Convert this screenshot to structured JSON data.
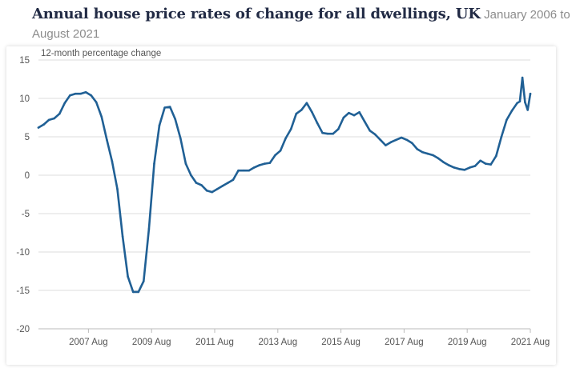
{
  "header": {
    "title": "Annual house price rates of change for all dwellings, UK",
    "subtitle": "January 2006 to August 2021"
  },
  "colors": {
    "line": "#206095",
    "grid": "#dddddd",
    "text": "#555555",
    "title": "#222b45"
  },
  "chart_data": {
    "type": "line",
    "title": "Annual house price rates of change for all dwellings, UK",
    "subtitle": "January 2006 to August 2021",
    "ylabel": "12-month percentage change",
    "xlabel": "",
    "ylim": [
      -20,
      15
    ],
    "xlim": [
      "2006-01",
      "2021-08"
    ],
    "yticks": [
      15,
      10,
      5,
      0,
      -5,
      -10,
      -15,
      -20
    ],
    "xticks": [
      "2007 Aug",
      "2009 Aug",
      "2011 Aug",
      "2013 Aug",
      "2015 Aug",
      "2017 Aug",
      "2019 Aug",
      "2021 Aug"
    ],
    "grid": true,
    "legend": "none",
    "series": [
      {
        "x": [
          "2006-01",
          "2006-03",
          "2006-05",
          "2006-07",
          "2006-09",
          "2006-11",
          "2007-01",
          "2007-03",
          "2007-05",
          "2007-07",
          "2007-09",
          "2007-11",
          "2008-01",
          "2008-03",
          "2008-05",
          "2008-07",
          "2008-09",
          "2008-11",
          "2009-01",
          "2009-03",
          "2009-05",
          "2009-07",
          "2009-09",
          "2009-11",
          "2010-01",
          "2010-03",
          "2010-05",
          "2010-07",
          "2010-09",
          "2010-11",
          "2011-01",
          "2011-03",
          "2011-05",
          "2011-07",
          "2011-09",
          "2011-11",
          "2012-01",
          "2012-03",
          "2012-05",
          "2012-07",
          "2012-09",
          "2012-11",
          "2013-01",
          "2013-03",
          "2013-05",
          "2013-07",
          "2013-09",
          "2013-11",
          "2014-01",
          "2014-03",
          "2014-05",
          "2014-07",
          "2014-09",
          "2014-11",
          "2015-01",
          "2015-03",
          "2015-05",
          "2015-07",
          "2015-09",
          "2015-11",
          "2016-01",
          "2016-03",
          "2016-05",
          "2016-07",
          "2016-09",
          "2016-11",
          "2017-01",
          "2017-03",
          "2017-05",
          "2017-07",
          "2017-09",
          "2017-11",
          "2018-01",
          "2018-03",
          "2018-05",
          "2018-07",
          "2018-09",
          "2018-11",
          "2019-01",
          "2019-03",
          "2019-05",
          "2019-07",
          "2019-09",
          "2019-11",
          "2020-01",
          "2020-03",
          "2020-05",
          "2020-07",
          "2020-09",
          "2020-11",
          "2021-01",
          "2021-03",
          "2021-04",
          "2021-05",
          "2021-06",
          "2021-07",
          "2021-08"
        ],
        "values": [
          6.2,
          6.6,
          7.2,
          7.4,
          8.0,
          9.4,
          10.4,
          10.6,
          10.6,
          10.8,
          10.4,
          9.5,
          7.6,
          4.6,
          1.8,
          -1.8,
          -8.0,
          -13.2,
          -15.2,
          -15.2,
          -13.8,
          -7.0,
          1.5,
          6.5,
          8.8,
          8.9,
          7.3,
          4.8,
          1.5,
          0.0,
          -1.0,
          -1.3,
          -2.0,
          -2.2,
          -1.8,
          -1.4,
          -1.0,
          -0.6,
          0.6,
          0.6,
          0.6,
          1.0,
          1.3,
          1.5,
          1.6,
          2.6,
          3.2,
          4.8,
          6.0,
          8.0,
          8.5,
          9.4,
          8.2,
          6.8,
          5.5,
          5.4,
          5.4,
          6.0,
          7.5,
          8.1,
          7.8,
          8.2,
          7.0,
          5.8,
          5.3,
          4.6,
          3.9,
          4.3,
          4.6,
          4.9,
          4.6,
          4.2,
          3.4,
          3.0,
          2.8,
          2.6,
          2.2,
          1.7,
          1.3,
          1.0,
          0.8,
          0.7,
          1.0,
          1.2,
          1.9,
          1.5,
          1.4,
          2.5,
          5.0,
          7.2,
          8.4,
          9.4,
          9.6,
          12.7,
          9.5,
          8.5,
          10.6
        ]
      }
    ]
  }
}
